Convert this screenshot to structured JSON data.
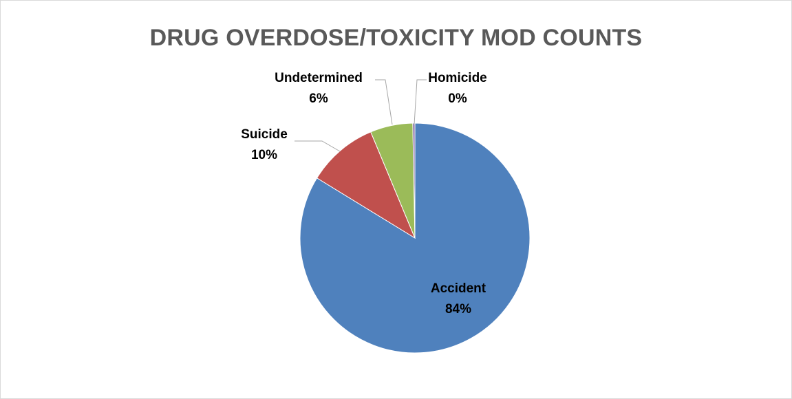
{
  "chart_data": {
    "type": "pie",
    "title": "DRUG OVERDOSE/TOXICITY MOD COUNTS",
    "slices": [
      {
        "label": "Accident",
        "value": 84,
        "percent_label": "84%",
        "color": "#4f81bd"
      },
      {
        "label": "Suicide",
        "value": 10,
        "percent_label": "10%",
        "color": "#c0504d"
      },
      {
        "label": "Undetermined",
        "value": 6,
        "percent_label": "6%",
        "color": "#9bbb59"
      },
      {
        "label": "Homicide",
        "value": 0.3,
        "percent_label": "0%",
        "color": "#8064a2"
      }
    ],
    "start_angle_deg": 0,
    "direction": "clockwise",
    "legend": "none"
  }
}
